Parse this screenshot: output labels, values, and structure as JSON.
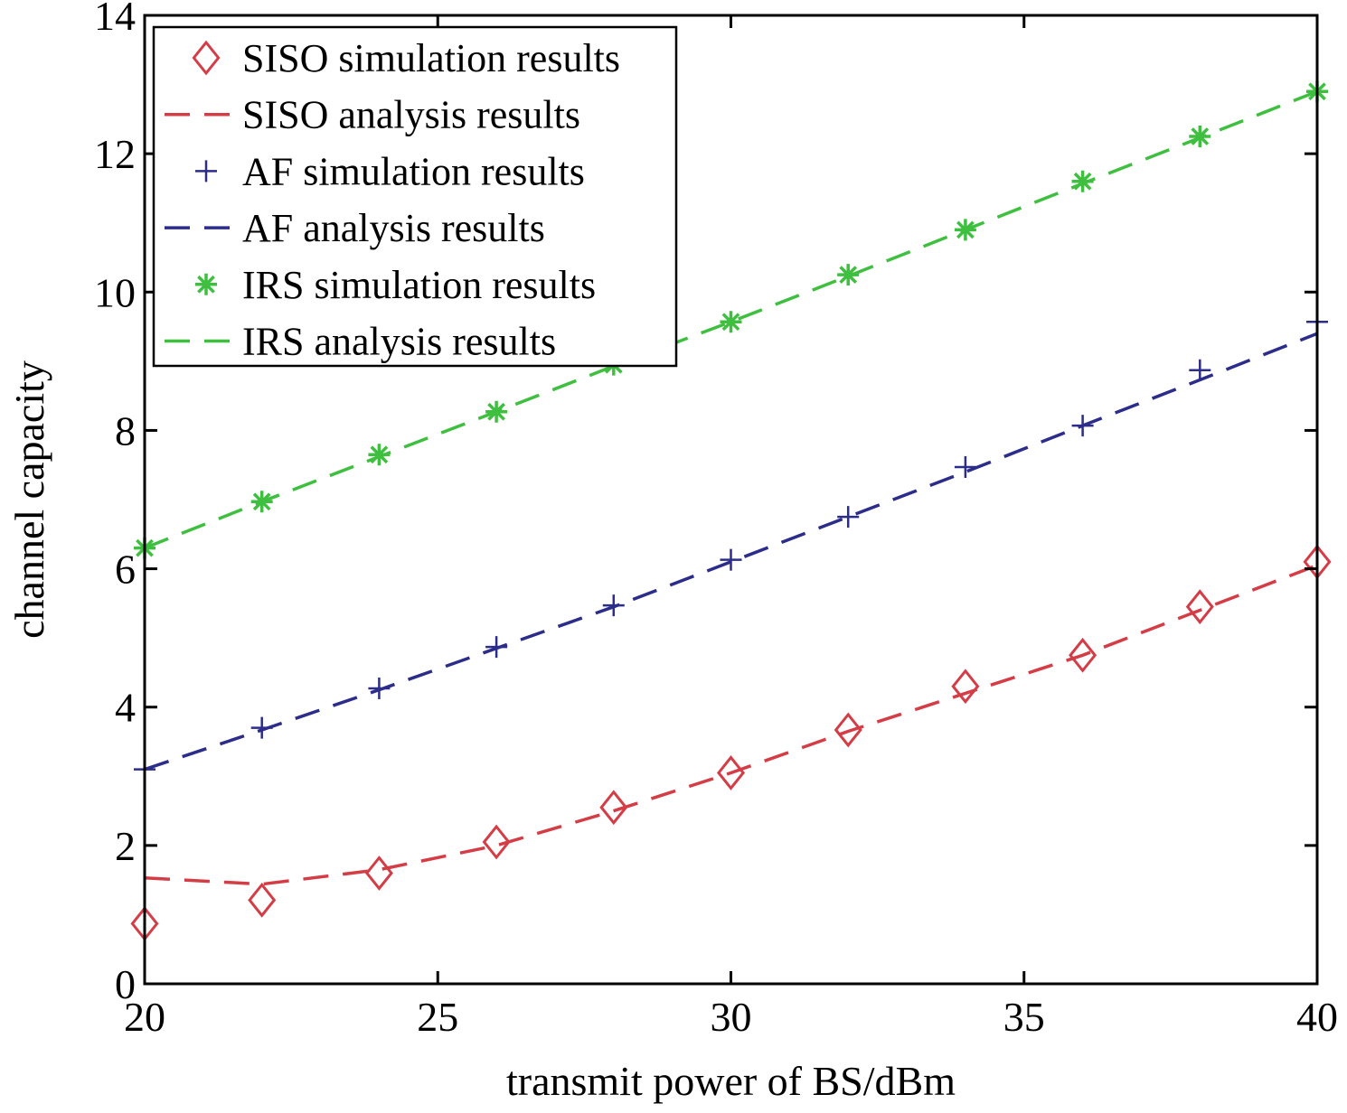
{
  "chart_data": {
    "type": "line",
    "title": "",
    "xlabel": "transmit power of BS/dBm",
    "ylabel": "channel capacity",
    "xlim": [
      20,
      40
    ],
    "ylim": [
      0,
      14
    ],
    "xticks": [
      20,
      25,
      30,
      35,
      40
    ],
    "yticks": [
      0,
      2,
      4,
      6,
      8,
      10,
      12,
      14
    ],
    "grid": false,
    "legend_position": "top-left",
    "series": [
      {
        "name": "SISO simulation results",
        "style": "markers",
        "marker": "diamond",
        "color": "#d43c46",
        "x": [
          20,
          22,
          24,
          26,
          28,
          30,
          32,
          34,
          36,
          38,
          40
        ],
        "y": [
          0.87,
          1.21,
          1.6,
          2.05,
          2.55,
          3.05,
          3.67,
          4.3,
          4.75,
          5.45,
          6.1
        ]
      },
      {
        "name": "SISO analysis results",
        "style": "dashed",
        "color": "#d43c46",
        "x": [
          20,
          22,
          24,
          26,
          28,
          30,
          32,
          34,
          36,
          38,
          40
        ],
        "y": [
          1.53,
          1.44,
          1.65,
          2.0,
          2.5,
          3.05,
          3.65,
          4.2,
          4.75,
          5.4,
          6.05
        ]
      },
      {
        "name": "AF simulation results",
        "style": "markers",
        "marker": "plus",
        "color": "#2c2d8a",
        "x": [
          20,
          22,
          24,
          26,
          28,
          30,
          32,
          34,
          36,
          38,
          40
        ],
        "y": [
          3.1,
          3.7,
          4.27,
          4.87,
          5.47,
          6.13,
          6.75,
          7.47,
          8.07,
          8.87,
          9.57
        ]
      },
      {
        "name": "AF analysis results",
        "style": "dashed",
        "color": "#2c2d8a",
        "x": [
          20,
          22,
          24,
          26,
          28,
          30,
          32,
          34,
          36,
          38,
          40
        ],
        "y": [
          3.1,
          3.67,
          4.25,
          4.85,
          5.45,
          6.1,
          6.75,
          7.4,
          8.07,
          8.73,
          9.4
        ]
      },
      {
        "name": "IRS simulation results",
        "style": "markers",
        "marker": "star",
        "color": "#3fbf3f",
        "x": [
          20,
          22,
          24,
          26,
          28,
          30,
          32,
          34,
          36,
          38,
          40
        ],
        "y": [
          6.3,
          6.97,
          7.65,
          8.27,
          8.95,
          9.57,
          10.25,
          10.9,
          11.6,
          12.25,
          12.9
        ]
      },
      {
        "name": "IRS analysis results",
        "style": "dashed",
        "color": "#3fbf3f",
        "x": [
          20,
          22,
          24,
          26,
          28,
          30,
          32,
          34,
          36,
          38,
          40
        ],
        "y": [
          6.3,
          6.97,
          7.62,
          8.27,
          8.93,
          9.57,
          10.23,
          10.9,
          11.57,
          12.23,
          12.9
        ]
      }
    ]
  }
}
